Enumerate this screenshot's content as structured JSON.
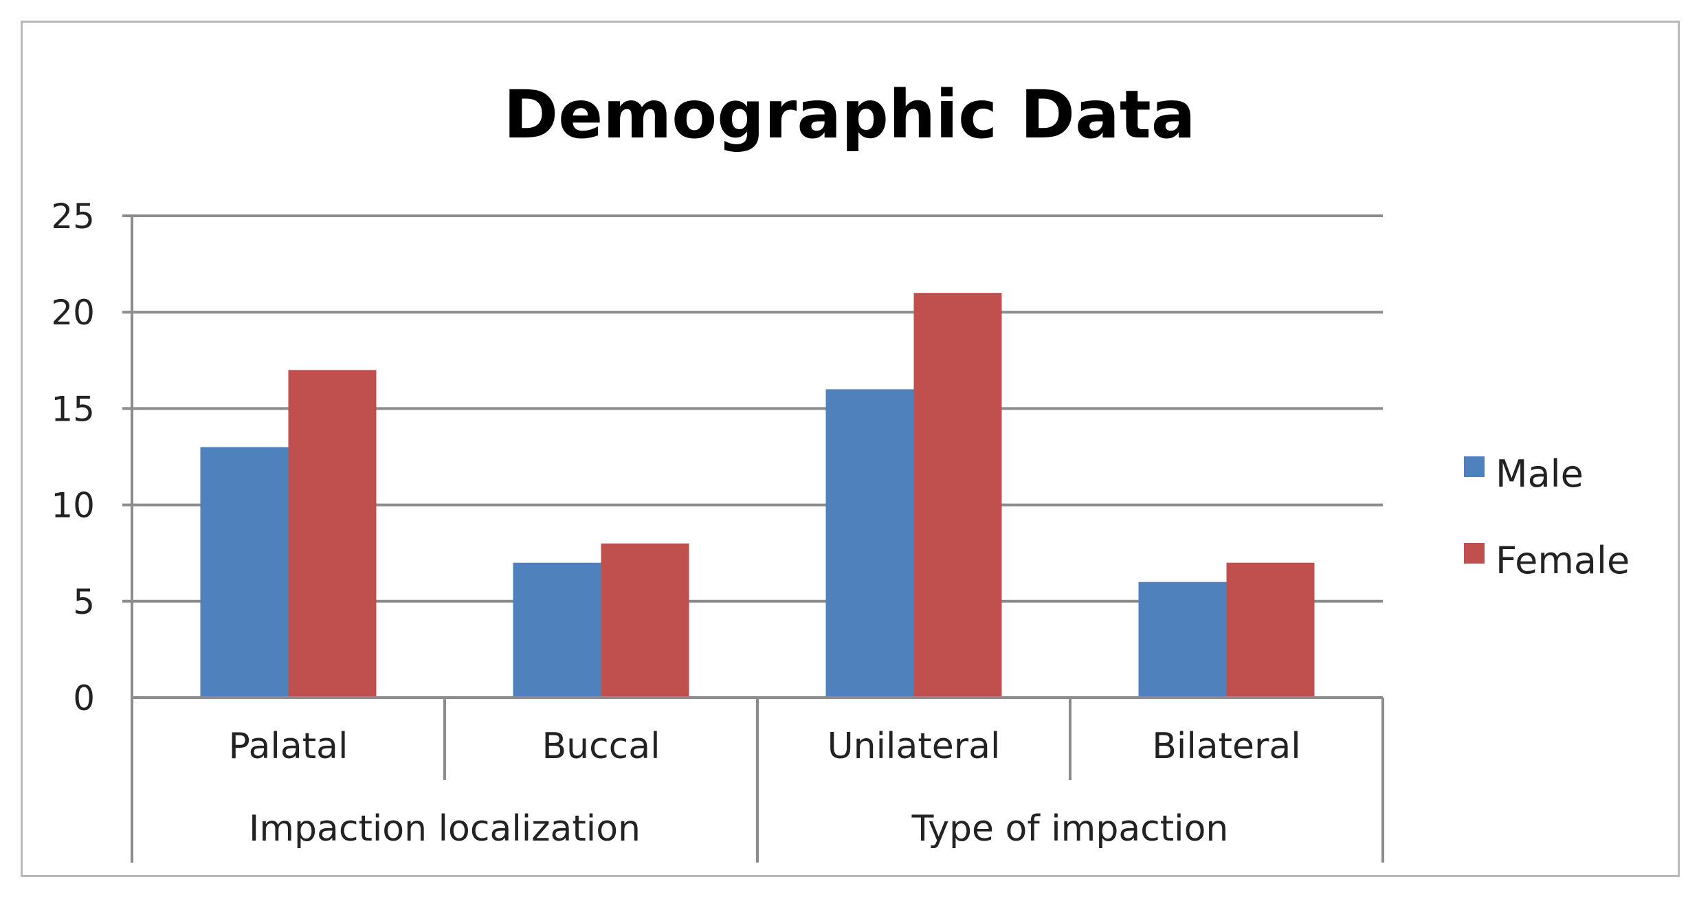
{
  "chart_data": {
    "type": "bar",
    "title": "Demographic Data",
    "xlabel": "",
    "ylabel": "",
    "ylim": [
      0,
      25
    ],
    "yticks": [
      0,
      5,
      10,
      15,
      20,
      25
    ],
    "grid": true,
    "legend_position": "right",
    "groups": [
      {
        "label": "Impaction localization",
        "categories": [
          "Palatal",
          "Buccal"
        ]
      },
      {
        "label": "Type of impaction",
        "categories": [
          "Unilateral",
          "Bilateral"
        ]
      }
    ],
    "categories": [
      "Palatal",
      "Buccal",
      "Unilateral",
      "Bilateral"
    ],
    "series": [
      {
        "name": "Male",
        "color": "#4f81bd",
        "values": [
          13,
          7,
          16,
          6
        ]
      },
      {
        "name": "Female",
        "color": "#c0504d",
        "values": [
          17,
          8,
          21,
          7
        ]
      }
    ]
  }
}
